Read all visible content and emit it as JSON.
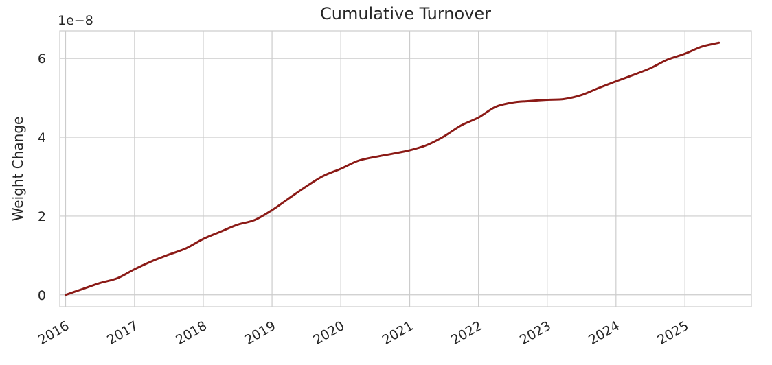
{
  "chart_data": {
    "type": "line",
    "title": "Cumulative Turnover",
    "xlabel": "",
    "ylabel": "Weight Change",
    "y_offset_label": "1e−8",
    "y_multiplier": 1e-08,
    "xlim": [
      "2015-12-01",
      "2025-12-20"
    ],
    "ylim": [
      -0.3,
      6.7
    ],
    "x_ticks": [
      {
        "date": "2016-01-01",
        "label": "2016"
      },
      {
        "date": "2017-01-01",
        "label": "2017"
      },
      {
        "date": "2018-01-01",
        "label": "2018"
      },
      {
        "date": "2019-01-01",
        "label": "2019"
      },
      {
        "date": "2020-01-01",
        "label": "2020"
      },
      {
        "date": "2021-01-01",
        "label": "2021"
      },
      {
        "date": "2022-01-01",
        "label": "2022"
      },
      {
        "date": "2023-01-01",
        "label": "2023"
      },
      {
        "date": "2024-01-01",
        "label": "2024"
      },
      {
        "date": "2025-01-01",
        "label": "2025"
      }
    ],
    "y_ticks": [
      {
        "value": 0,
        "label": "0"
      },
      {
        "value": 2,
        "label": "2"
      },
      {
        "value": 4,
        "label": "4"
      },
      {
        "value": 6,
        "label": "6"
      }
    ],
    "grid": true,
    "legend": "none",
    "series": [
      {
        "color": "#8b1a16",
        "points": [
          {
            "x": "2016-01-01",
            "y": 0.0
          },
          {
            "x": "2016-04-01",
            "y": 0.15
          },
          {
            "x": "2016-07-01",
            "y": 0.3
          },
          {
            "x": "2016-10-01",
            "y": 0.42
          },
          {
            "x": "2017-01-01",
            "y": 0.65
          },
          {
            "x": "2017-04-01",
            "y": 0.85
          },
          {
            "x": "2017-07-01",
            "y": 1.02
          },
          {
            "x": "2017-10-01",
            "y": 1.18
          },
          {
            "x": "2018-01-01",
            "y": 1.42
          },
          {
            "x": "2018-04-01",
            "y": 1.6
          },
          {
            "x": "2018-07-01",
            "y": 1.78
          },
          {
            "x": "2018-10-01",
            "y": 1.9
          },
          {
            "x": "2019-01-01",
            "y": 2.15
          },
          {
            "x": "2019-04-01",
            "y": 2.45
          },
          {
            "x": "2019-07-01",
            "y": 2.75
          },
          {
            "x": "2019-10-01",
            "y": 3.02
          },
          {
            "x": "2020-01-01",
            "y": 3.2
          },
          {
            "x": "2020-04-01",
            "y": 3.4
          },
          {
            "x": "2020-07-01",
            "y": 3.5
          },
          {
            "x": "2020-10-01",
            "y": 3.58
          },
          {
            "x": "2021-01-01",
            "y": 3.67
          },
          {
            "x": "2021-04-01",
            "y": 3.8
          },
          {
            "x": "2021-07-01",
            "y": 4.02
          },
          {
            "x": "2021-10-01",
            "y": 4.3
          },
          {
            "x": "2022-01-01",
            "y": 4.5
          },
          {
            "x": "2022-04-01",
            "y": 4.77
          },
          {
            "x": "2022-07-01",
            "y": 4.88
          },
          {
            "x": "2022-10-01",
            "y": 4.92
          },
          {
            "x": "2023-01-01",
            "y": 4.95
          },
          {
            "x": "2023-04-01",
            "y": 4.97
          },
          {
            "x": "2023-07-01",
            "y": 5.07
          },
          {
            "x": "2023-10-01",
            "y": 5.25
          },
          {
            "x": "2024-01-01",
            "y": 5.42
          },
          {
            "x": "2024-04-01",
            "y": 5.58
          },
          {
            "x": "2024-07-01",
            "y": 5.75
          },
          {
            "x": "2024-10-01",
            "y": 5.97
          },
          {
            "x": "2025-01-01",
            "y": 6.12
          },
          {
            "x": "2025-04-01",
            "y": 6.3
          },
          {
            "x": "2025-07-01",
            "y": 6.4
          }
        ]
      }
    ]
  }
}
